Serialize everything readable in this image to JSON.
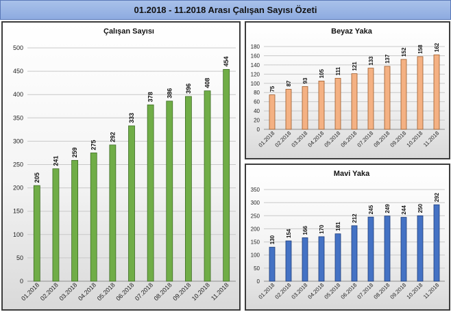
{
  "header": {
    "title": "01.2018 - 11.2018 Arası Çalışan Sayısı Özeti"
  },
  "chart_data": [
    {
      "type": "bar",
      "title": "Çalışan Sayısı",
      "categories": [
        "01.2018",
        "02.2018",
        "03.2018",
        "04.2018",
        "05.2018",
        "06.2018",
        "07.2018",
        "08.2018",
        "09.2018",
        "10.2018",
        "11.2018"
      ],
      "values": [
        205,
        241,
        259,
        275,
        292,
        333,
        378,
        386,
        396,
        408,
        454
      ],
      "ylim": [
        0,
        500
      ],
      "yticks": [
        0,
        50,
        100,
        150,
        200,
        250,
        300,
        350,
        400,
        450,
        500
      ],
      "grid": true,
      "bar_color": "#70ad47",
      "bar_stroke": "#3d6b23"
    },
    {
      "type": "bar",
      "title": "Beyaz Yaka",
      "categories": [
        "01.2018",
        "02.2018",
        "03.2018",
        "04.2018",
        "05.2018",
        "06.2018",
        "07.2018",
        "08.2018",
        "09.2018",
        "10.2018",
        "11.2018"
      ],
      "values": [
        75,
        87,
        93,
        105,
        111,
        121,
        133,
        137,
        152,
        158,
        162
      ],
      "ylim": [
        0,
        180
      ],
      "yticks": [
        0,
        20,
        40,
        60,
        80,
        100,
        120,
        140,
        160,
        180
      ],
      "grid": true,
      "bar_color": "#f4b183",
      "bar_stroke": "#9c5a2a"
    },
    {
      "type": "bar",
      "title": "Mavi Yaka",
      "categories": [
        "01.2018",
        "02.2018",
        "03.2018",
        "04.2018",
        "05.2018",
        "06.2018",
        "07.2018",
        "08.2018",
        "09.2018",
        "10.2018",
        "11.2018"
      ],
      "values": [
        130,
        154,
        166,
        170,
        181,
        212,
        245,
        249,
        244,
        250,
        292
      ],
      "ylim": [
        0,
        350
      ],
      "yticks": [
        0,
        50,
        100,
        150,
        200,
        250,
        300,
        350
      ],
      "grid": true,
      "bar_color": "#4472c4",
      "bar_stroke": "#1f3c78"
    }
  ]
}
